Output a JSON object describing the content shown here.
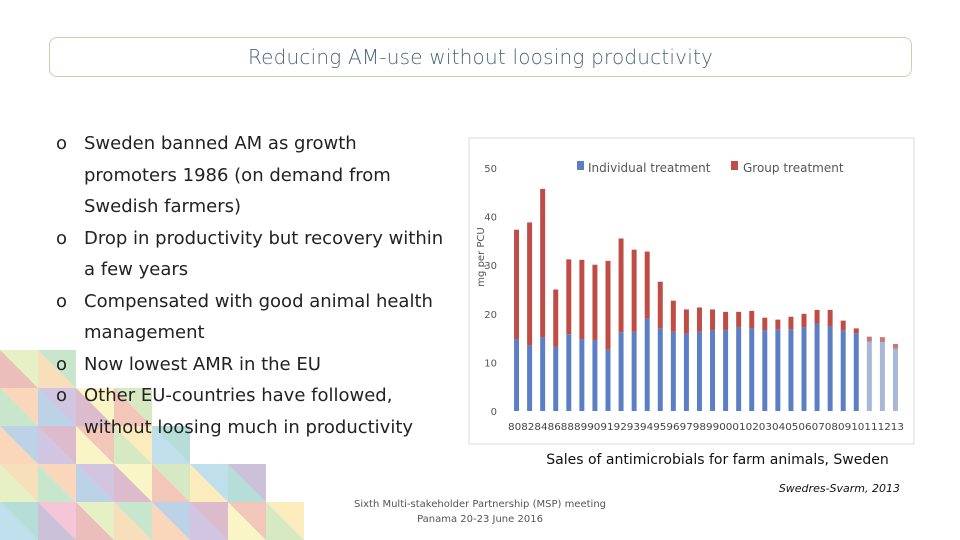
{
  "slide": {
    "title": "Reducing AM-use without loosing productivity",
    "bullets": [
      "Sweden banned AM as growth promoters  1986 (on demand from Swedish farmers)",
      "Drop in productivity but recovery within a few years",
      "Compensated with good animal health management",
      "Now lowest AMR in the EU",
      "Other EU-countries have followed, without loosing much in productivity"
    ],
    "bullet_marker": "o",
    "caption": "Sales of antimicrobials for farm animals, Sweden",
    "source": "Swedres-Svarm, 2013",
    "footer_line1": "Sixth Multi-stakeholder Partnership (MSP) meeting",
    "footer_line2": "Panama 20-23 June 2016"
  },
  "colors": {
    "individual": "#5b7ec4",
    "group": "#bf4c45",
    "individual_light": "#aab6d8",
    "group_light": "#c97a76",
    "axis_text": "#555555",
    "title_border": "#c9d3a8"
  },
  "chart_data": {
    "type": "bar",
    "stacked": true,
    "title": "",
    "xlabel": "",
    "ylabel": "mg per PCU",
    "ylim": [
      0,
      50
    ],
    "yticks": [
      0,
      10,
      20,
      30,
      40,
      50
    ],
    "legend_position": "top",
    "categories": [
      "80",
      "82",
      "84",
      "86",
      "88",
      "89",
      "90",
      "91",
      "92",
      "93",
      "94",
      "95",
      "96",
      "97",
      "98",
      "99",
      "00",
      "01",
      "02",
      "03",
      "04",
      "05",
      "06",
      "07",
      "08",
      "09",
      "10",
      "11",
      "12",
      "13"
    ],
    "x_label_text": "808284868889909192939495969798990001020304050607080910111213",
    "series": [
      {
        "name": "Individual treatment",
        "values": [
          14.8,
          13.5,
          15.2,
          13.2,
          15.8,
          14.8,
          14.6,
          12.6,
          16.2,
          16.3,
          19.0,
          17.0,
          16.3,
          15.9,
          16.3,
          16.6,
          16.6,
          17.2,
          17.0,
          16.6,
          16.8,
          16.8,
          17.2,
          18.0,
          17.4,
          16.6,
          16.0,
          14.3,
          14.2,
          12.8
        ]
      },
      {
        "name": "Group treatment",
        "values": [
          22.5,
          25.3,
          30.5,
          11.8,
          15.4,
          16.3,
          15.5,
          18.3,
          19.3,
          16.9,
          13.8,
          9.6,
          6.4,
          5.0,
          5.0,
          4.3,
          3.8,
          3.2,
          3.6,
          2.6,
          2.0,
          2.6,
          2.8,
          2.8,
          3.4,
          2.0,
          1.0,
          1.0,
          1.0,
          1.0
        ]
      }
    ],
    "faded_from_category": "11"
  }
}
